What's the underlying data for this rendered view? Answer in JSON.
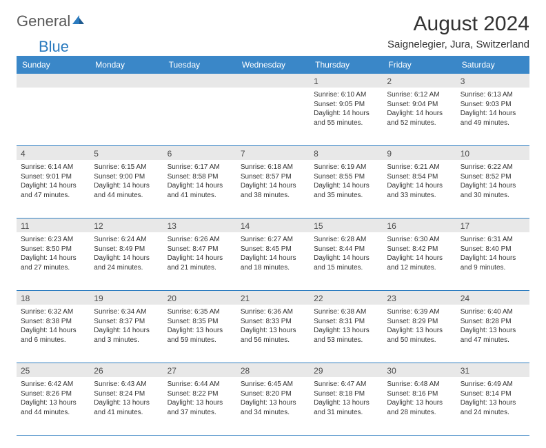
{
  "logo": {
    "general": "General",
    "blue": "Blue"
  },
  "header": {
    "month_year": "August 2024",
    "location": "Saignelegier, Jura, Switzerland"
  },
  "colors": {
    "header_bg": "#3a87c8",
    "accent": "#2b7bbf",
    "shade": "#e8e8e8"
  },
  "day_names": [
    "Sunday",
    "Monday",
    "Tuesday",
    "Wednesday",
    "Thursday",
    "Friday",
    "Saturday"
  ],
  "weeks": [
    [
      {
        "n": "",
        "sr": "",
        "ss": "",
        "dl": ""
      },
      {
        "n": "",
        "sr": "",
        "ss": "",
        "dl": ""
      },
      {
        "n": "",
        "sr": "",
        "ss": "",
        "dl": ""
      },
      {
        "n": "",
        "sr": "",
        "ss": "",
        "dl": ""
      },
      {
        "n": "1",
        "sr": "Sunrise: 6:10 AM",
        "ss": "Sunset: 9:05 PM",
        "dl": "Daylight: 14 hours and 55 minutes."
      },
      {
        "n": "2",
        "sr": "Sunrise: 6:12 AM",
        "ss": "Sunset: 9:04 PM",
        "dl": "Daylight: 14 hours and 52 minutes."
      },
      {
        "n": "3",
        "sr": "Sunrise: 6:13 AM",
        "ss": "Sunset: 9:03 PM",
        "dl": "Daylight: 14 hours and 49 minutes."
      }
    ],
    [
      {
        "n": "4",
        "sr": "Sunrise: 6:14 AM",
        "ss": "Sunset: 9:01 PM",
        "dl": "Daylight: 14 hours and 47 minutes."
      },
      {
        "n": "5",
        "sr": "Sunrise: 6:15 AM",
        "ss": "Sunset: 9:00 PM",
        "dl": "Daylight: 14 hours and 44 minutes."
      },
      {
        "n": "6",
        "sr": "Sunrise: 6:17 AM",
        "ss": "Sunset: 8:58 PM",
        "dl": "Daylight: 14 hours and 41 minutes."
      },
      {
        "n": "7",
        "sr": "Sunrise: 6:18 AM",
        "ss": "Sunset: 8:57 PM",
        "dl": "Daylight: 14 hours and 38 minutes."
      },
      {
        "n": "8",
        "sr": "Sunrise: 6:19 AM",
        "ss": "Sunset: 8:55 PM",
        "dl": "Daylight: 14 hours and 35 minutes."
      },
      {
        "n": "9",
        "sr": "Sunrise: 6:21 AM",
        "ss": "Sunset: 8:54 PM",
        "dl": "Daylight: 14 hours and 33 minutes."
      },
      {
        "n": "10",
        "sr": "Sunrise: 6:22 AM",
        "ss": "Sunset: 8:52 PM",
        "dl": "Daylight: 14 hours and 30 minutes."
      }
    ],
    [
      {
        "n": "11",
        "sr": "Sunrise: 6:23 AM",
        "ss": "Sunset: 8:50 PM",
        "dl": "Daylight: 14 hours and 27 minutes."
      },
      {
        "n": "12",
        "sr": "Sunrise: 6:24 AM",
        "ss": "Sunset: 8:49 PM",
        "dl": "Daylight: 14 hours and 24 minutes."
      },
      {
        "n": "13",
        "sr": "Sunrise: 6:26 AM",
        "ss": "Sunset: 8:47 PM",
        "dl": "Daylight: 14 hours and 21 minutes."
      },
      {
        "n": "14",
        "sr": "Sunrise: 6:27 AM",
        "ss": "Sunset: 8:45 PM",
        "dl": "Daylight: 14 hours and 18 minutes."
      },
      {
        "n": "15",
        "sr": "Sunrise: 6:28 AM",
        "ss": "Sunset: 8:44 PM",
        "dl": "Daylight: 14 hours and 15 minutes."
      },
      {
        "n": "16",
        "sr": "Sunrise: 6:30 AM",
        "ss": "Sunset: 8:42 PM",
        "dl": "Daylight: 14 hours and 12 minutes."
      },
      {
        "n": "17",
        "sr": "Sunrise: 6:31 AM",
        "ss": "Sunset: 8:40 PM",
        "dl": "Daylight: 14 hours and 9 minutes."
      }
    ],
    [
      {
        "n": "18",
        "sr": "Sunrise: 6:32 AM",
        "ss": "Sunset: 8:38 PM",
        "dl": "Daylight: 14 hours and 6 minutes."
      },
      {
        "n": "19",
        "sr": "Sunrise: 6:34 AM",
        "ss": "Sunset: 8:37 PM",
        "dl": "Daylight: 14 hours and 3 minutes."
      },
      {
        "n": "20",
        "sr": "Sunrise: 6:35 AM",
        "ss": "Sunset: 8:35 PM",
        "dl": "Daylight: 13 hours and 59 minutes."
      },
      {
        "n": "21",
        "sr": "Sunrise: 6:36 AM",
        "ss": "Sunset: 8:33 PM",
        "dl": "Daylight: 13 hours and 56 minutes."
      },
      {
        "n": "22",
        "sr": "Sunrise: 6:38 AM",
        "ss": "Sunset: 8:31 PM",
        "dl": "Daylight: 13 hours and 53 minutes."
      },
      {
        "n": "23",
        "sr": "Sunrise: 6:39 AM",
        "ss": "Sunset: 8:29 PM",
        "dl": "Daylight: 13 hours and 50 minutes."
      },
      {
        "n": "24",
        "sr": "Sunrise: 6:40 AM",
        "ss": "Sunset: 8:28 PM",
        "dl": "Daylight: 13 hours and 47 minutes."
      }
    ],
    [
      {
        "n": "25",
        "sr": "Sunrise: 6:42 AM",
        "ss": "Sunset: 8:26 PM",
        "dl": "Daylight: 13 hours and 44 minutes."
      },
      {
        "n": "26",
        "sr": "Sunrise: 6:43 AM",
        "ss": "Sunset: 8:24 PM",
        "dl": "Daylight: 13 hours and 41 minutes."
      },
      {
        "n": "27",
        "sr": "Sunrise: 6:44 AM",
        "ss": "Sunset: 8:22 PM",
        "dl": "Daylight: 13 hours and 37 minutes."
      },
      {
        "n": "28",
        "sr": "Sunrise: 6:45 AM",
        "ss": "Sunset: 8:20 PM",
        "dl": "Daylight: 13 hours and 34 minutes."
      },
      {
        "n": "29",
        "sr": "Sunrise: 6:47 AM",
        "ss": "Sunset: 8:18 PM",
        "dl": "Daylight: 13 hours and 31 minutes."
      },
      {
        "n": "30",
        "sr": "Sunrise: 6:48 AM",
        "ss": "Sunset: 8:16 PM",
        "dl": "Daylight: 13 hours and 28 minutes."
      },
      {
        "n": "31",
        "sr": "Sunrise: 6:49 AM",
        "ss": "Sunset: 8:14 PM",
        "dl": "Daylight: 13 hours and 24 minutes."
      }
    ]
  ]
}
